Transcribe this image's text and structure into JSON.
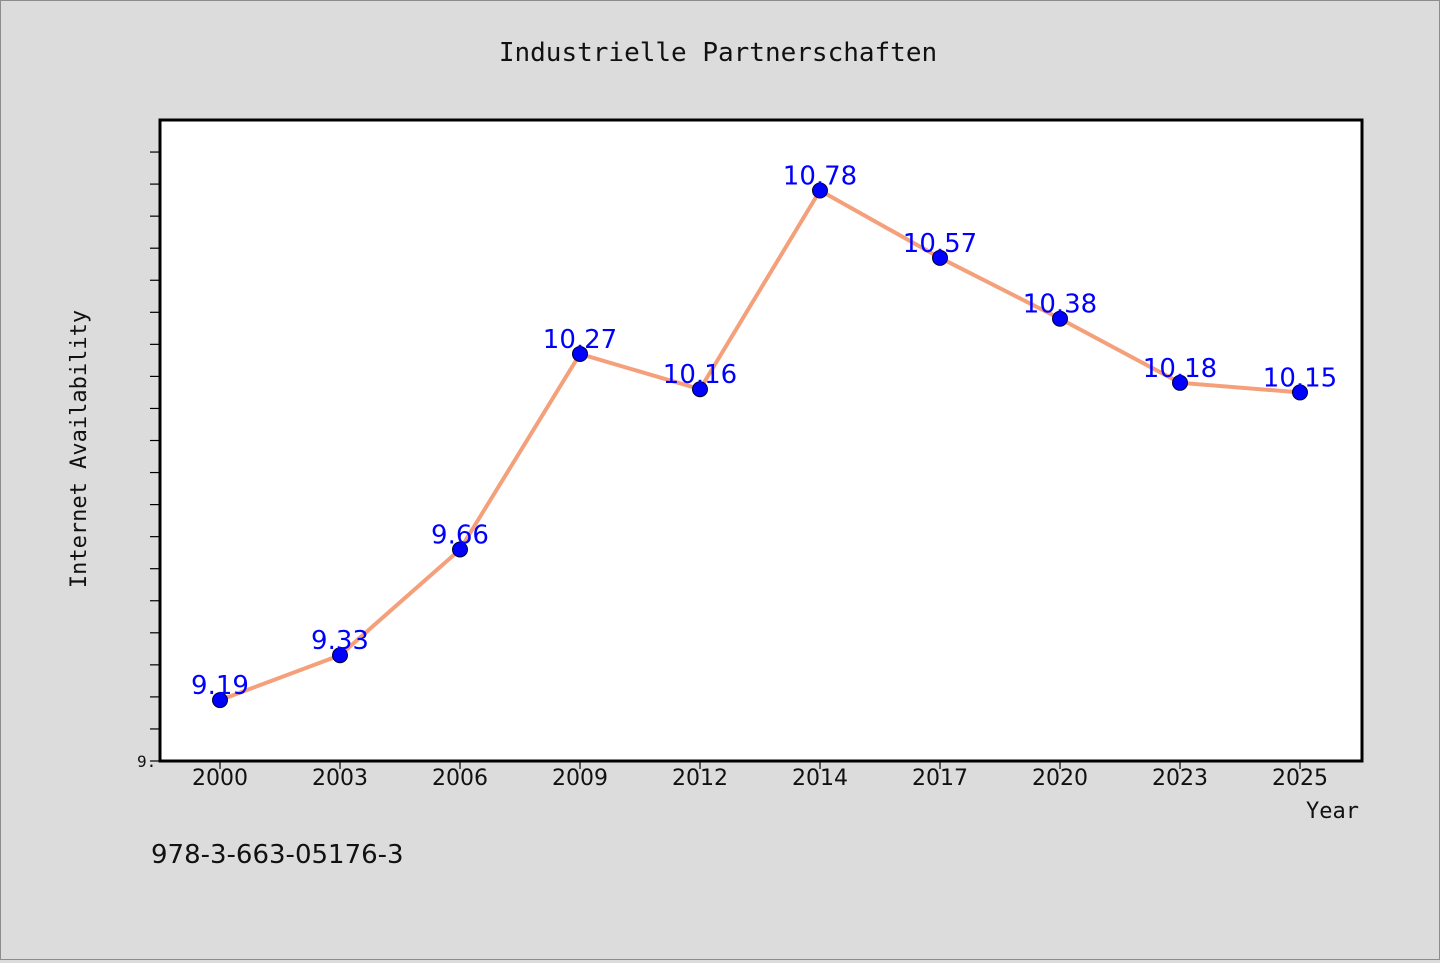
{
  "chart_data": {
    "type": "line",
    "title": "Industrielle Partnerschaften",
    "xlabel": "Year",
    "ylabel": "Internet Availability",
    "categories": [
      "2000",
      "2003",
      "2006",
      "2009",
      "2012",
      "2014",
      "2017",
      "2020",
      "2023",
      "2025"
    ],
    "series": [
      {
        "values": [
          9.19,
          9.33,
          9.66,
          10.27,
          10.16,
          10.78,
          10.57,
          10.38,
          10.18,
          10.15
        ],
        "data_labels": [
          "9.19",
          "9.33",
          "9.66",
          "10.27",
          "10.16",
          "10.78",
          "10.57",
          "10.38",
          "10.18",
          "10.15"
        ],
        "line_color": "#f4a07a",
        "marker_color": "#0000ff"
      }
    ],
    "ylim": [
      9.0,
      11.0
    ],
    "y_tick_label_visible": "9.",
    "grid": false,
    "legend": "none",
    "data_label_color": "#0000ff"
  },
  "footer": {
    "isbn": "978-3-663-05176-3"
  }
}
